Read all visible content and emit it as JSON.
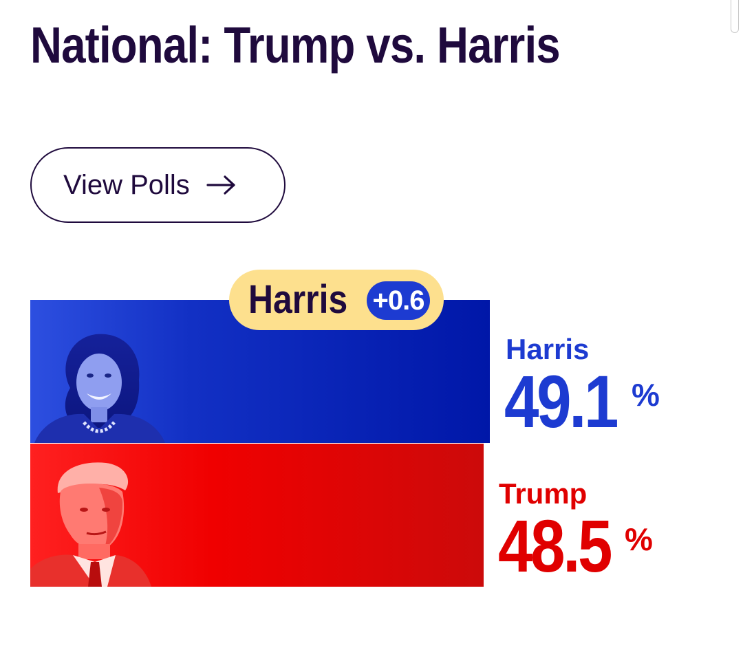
{
  "page": {
    "title": "National: Trump vs. Harris"
  },
  "view_polls_button": {
    "label": "View Polls",
    "icon": "arrow-right-icon"
  },
  "leader_badge": {
    "name": "Harris",
    "margin": "+0.6"
  },
  "candidates": [
    {
      "name": "Harris",
      "value": "49.1",
      "unit": "%",
      "share": 49.1,
      "color": "#1d3bd1",
      "bar_gradient": [
        "#2d4fe0",
        "#0017a8"
      ],
      "photo": "harris-photo"
    },
    {
      "name": "Trump",
      "value": "48.5",
      "unit": "%",
      "share": 48.5,
      "color": "#e00000",
      "bar_gradient": [
        "#ff2020",
        "#cc0a0a"
      ],
      "photo": "trump-photo"
    }
  ],
  "colors": {
    "title": "#1f0a3d",
    "badge_background": "#fde08e",
    "badge_margin_background": "#1d3bd1"
  }
}
